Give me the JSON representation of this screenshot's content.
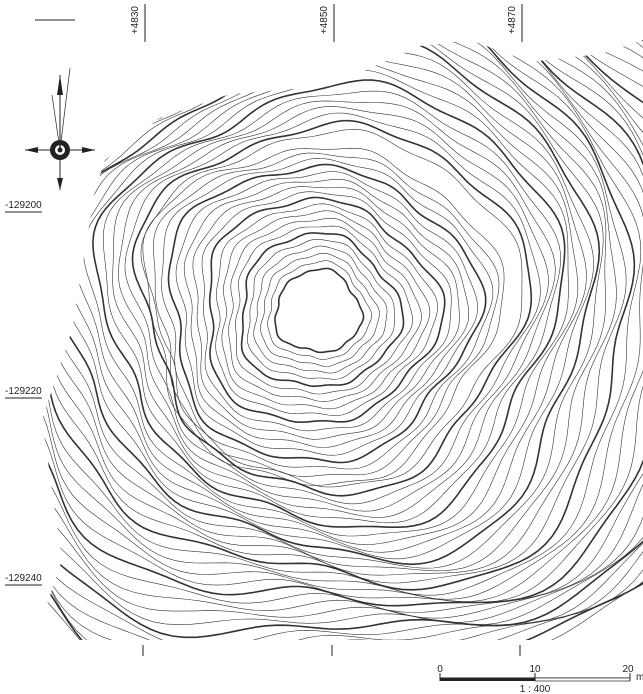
{
  "grid_labels": {
    "easting": [
      "+4830",
      "+4850",
      "+4870"
    ],
    "northing": [
      "-129200",
      "-129220",
      "-129240"
    ]
  },
  "scale_bar": {
    "labels": [
      "0",
      "10",
      "20"
    ],
    "unit": "m",
    "ratio": "1 : 400"
  }
}
